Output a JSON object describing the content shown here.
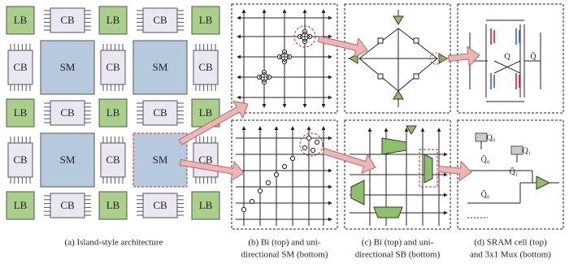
{
  "grid": {
    "lb": "LB",
    "cb": "CB",
    "sm": "SM"
  },
  "sram": {
    "q": "Q",
    "qbar": "Q̄"
  },
  "mux": {
    "q0": "Q₀",
    "q1": "Q₁",
    "q0bar": "Q̄₀",
    "q1bar": "Q̄₁",
    "q0bar2": "Q̄₀"
  },
  "captions": {
    "a": [
      "(a) Island-style architecture"
    ],
    "b": [
      "(b) Bi (top) and uni-",
      "directional SM (bottom)"
    ],
    "c": [
      "(c) Bi (top) and uni-",
      "directional SB (bottom)"
    ],
    "d": [
      "(d) SRAM cell (top)",
      "and 3x1 Mux (bottom)"
    ]
  }
}
